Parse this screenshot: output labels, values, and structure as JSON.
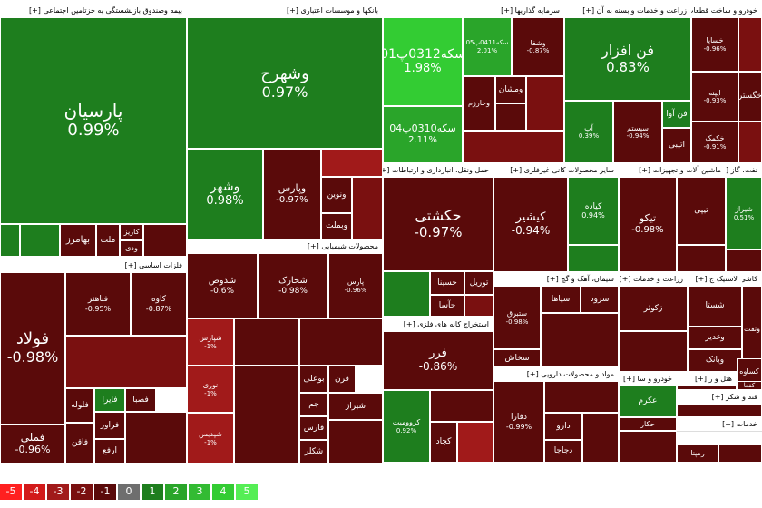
{
  "colors": {
    "pos1": "#1e7e1e",
    "pos2": "#2aa52a",
    "pos3": "#33cc33",
    "neg1": "#5a0a0a",
    "neg2": "#7a1010",
    "neg3": "#a11a1a",
    "zero": "#6e6e6e"
  },
  "sectors": [
    {
      "title": "بیمه وصندوق بازنشستگی به جزتامین اجتماعی [+]"
    },
    {
      "title": "بانکها و موسسات اعتباری [+]"
    },
    {
      "title": "سرمایه گذاریها [+]"
    },
    {
      "title": "زراعت و خدمات وابسته به آن [+]"
    },
    {
      "title": "خودرو و ساخت قطعات [+]"
    },
    {
      "title": "فلزات اساسی [+]"
    },
    {
      "title": "محصولات شیمیایی [+]"
    },
    {
      "title": "حمل ونقل، انبارداری و ارتباطات [+]"
    },
    {
      "title": "سایر محصولات کانی غیرفلزی [+]"
    },
    {
      "title": "ماشین آلات و تجهیزات [+]"
    },
    {
      "title": "نفت، گاز [+]"
    },
    {
      "title": "استخراج کانه های فلزی [+]"
    },
    {
      "title": "سیمان، آهک و گچ [+]"
    },
    {
      "title": "مواد و محصولات دارویی [+]"
    },
    {
      "title": "زراعت و خدمات [+]"
    },
    {
      "title": "لاستیک ج [+]"
    },
    {
      "title": "کاشی [+]"
    },
    {
      "title": "خودرو و سا [+]"
    },
    {
      "title": "هتل و ر [+]"
    },
    {
      "title": "سایر [+]"
    },
    {
      "title": "فراورده ها [+]"
    },
    {
      "title": "خدمات [+]"
    },
    {
      "title": "قند و شکر [+]"
    }
  ],
  "tiles": [
    {
      "name": "پارسیان",
      "pct": "0.99%"
    },
    {
      "name": "بهامرز",
      "pct": ""
    },
    {
      "name": "ملت",
      "pct": ""
    },
    {
      "name": "کاریز",
      "pct": ""
    },
    {
      "name": "ودی",
      "pct": ""
    },
    {
      "name": "وشهرح",
      "pct": "0.97%"
    },
    {
      "name": "وشهر",
      "pct": "0.98%"
    },
    {
      "name": "وپارس",
      "pct": "-0.97%"
    },
    {
      "name": "ونوین",
      "pct": ""
    },
    {
      "name": "وبملت",
      "pct": ""
    },
    {
      "name": "سکه0312پ01",
      "pct": "1.98%"
    },
    {
      "name": "سکه0310پ04",
      "pct": "2.11%"
    },
    {
      "name": "سکه0411پ05",
      "pct": "2.01%"
    },
    {
      "name": "وشفا",
      "pct": "-0.87%"
    },
    {
      "name": "ومشان",
      "pct": ""
    },
    {
      "name": "وخارزم",
      "pct": ""
    },
    {
      "name": "فن افزار",
      "pct": "0.83%"
    },
    {
      "name": "آپ",
      "pct": "0.39%"
    },
    {
      "name": "سیستم",
      "pct": "-0.94%"
    },
    {
      "name": "فن آوا",
      "pct": ""
    },
    {
      "name": "اتیبی",
      "pct": ""
    },
    {
      "name": "خساپا",
      "pct": "-0.96%"
    },
    {
      "name": "ایپنه",
      "pct": "-0.93%"
    },
    {
      "name": "خکمک",
      "pct": "-0.91%"
    },
    {
      "name": "خگستر",
      "pct": ""
    },
    {
      "name": "فولاد",
      "pct": "-0.98%"
    },
    {
      "name": "فملی",
      "pct": "-0.96%"
    },
    {
      "name": "فباهنر",
      "pct": "-0.95%"
    },
    {
      "name": "کاوه",
      "pct": "-0.87%"
    },
    {
      "name": "فایرا",
      "pct": ""
    },
    {
      "name": "فلوله",
      "pct": ""
    },
    {
      "name": "فراور",
      "pct": ""
    },
    {
      "name": "فاقن",
      "pct": ""
    },
    {
      "name": "ارفع",
      "pct": ""
    },
    {
      "name": "فصبا",
      "pct": ""
    },
    {
      "name": "شدوص",
      "pct": "-0.6%"
    },
    {
      "name": "شخارک",
      "pct": "-0.98%"
    },
    {
      "name": "پارس",
      "pct": "-0.96%"
    },
    {
      "name": "شپارس",
      "pct": "-1%"
    },
    {
      "name": "نوری",
      "pct": "-1%"
    },
    {
      "name": "شپدیس",
      "pct": "-1%"
    },
    {
      "name": "بوعلی",
      "pct": ""
    },
    {
      "name": "شیراز",
      "pct": ""
    },
    {
      "name": "قرن",
      "pct": ""
    },
    {
      "name": "جم",
      "pct": ""
    },
    {
      "name": "فارس",
      "pct": ""
    },
    {
      "name": "شکلر",
      "pct": ""
    },
    {
      "name": "حکشتی",
      "pct": "-0.97%"
    },
    {
      "name": "حسینا",
      "pct": ""
    },
    {
      "name": "حآسا",
      "pct": ""
    },
    {
      "name": "توریل",
      "pct": ""
    },
    {
      "name": "کیشیر",
      "pct": "-0.94%"
    },
    {
      "name": "کیاده",
      "pct": "0.94%"
    },
    {
      "name": "تیکو",
      "pct": "-0.98%"
    },
    {
      "name": "تیپی",
      "pct": ""
    },
    {
      "name": "فرر",
      "pct": "-0.86%"
    },
    {
      "name": "کروومیت",
      "pct": "0.92%"
    },
    {
      "name": "کچاد",
      "pct": ""
    },
    {
      "name": "سپاها",
      "pct": ""
    },
    {
      "name": "سرود",
      "pct": ""
    },
    {
      "name": "ستبرق",
      "pct": "-0.98%"
    },
    {
      "name": "سخاش",
      "pct": ""
    },
    {
      "name": "دفارا",
      "pct": "-0.99%"
    },
    {
      "name": "دارو",
      "pct": ""
    },
    {
      "name": "دجاجا",
      "pct": ""
    },
    {
      "name": "زکوثر",
      "pct": ""
    },
    {
      "name": "شستا",
      "pct": ""
    },
    {
      "name": "ونفت",
      "pct": ""
    },
    {
      "name": "وغدیر",
      "pct": ""
    },
    {
      "name": "وبانک",
      "pct": ""
    },
    {
      "name": "کساوه",
      "pct": ""
    },
    {
      "name": "کفعا",
      "pct": ""
    },
    {
      "name": "حکار",
      "pct": ""
    },
    {
      "name": "رمپنا",
      "pct": ""
    },
    {
      "name": "شیراز",
      "pct": "0.51%"
    },
    {
      "name": "عکرم",
      "pct": ""
    }
  ],
  "legend": [
    "-5",
    "-4",
    "-3",
    "-2",
    "-1",
    "0",
    "1",
    "2",
    "3",
    "4",
    "5"
  ]
}
